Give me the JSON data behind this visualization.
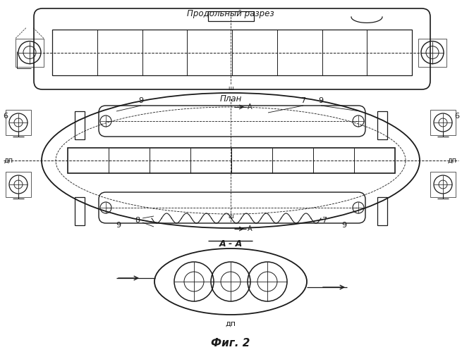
{
  "title_top": "Продольный разрез",
  "label_plan": "План",
  "label_fig": "Фиг. 2",
  "label_AA": "А - А",
  "label_dp": "дп",
  "bg_color": "#ffffff",
  "line_color": "#1a1a1a",
  "fig_width": 6.55,
  "fig_height": 5.0
}
